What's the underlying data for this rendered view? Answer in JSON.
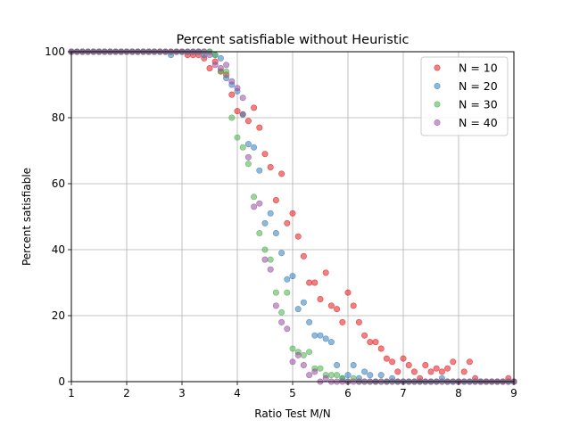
{
  "chart_data": {
    "type": "scatter",
    "title": "Percent satisfiable without Heuristic",
    "xlabel": "Ratio Test M/N",
    "ylabel": "Percent satisfiable",
    "xlim": [
      1,
      9
    ],
    "ylim": [
      0,
      100
    ],
    "xticks": [
      "1",
      "2",
      "3",
      "4",
      "5",
      "6",
      "7",
      "8",
      "9"
    ],
    "yticks": [
      "0",
      "20",
      "40",
      "60",
      "80",
      "100"
    ],
    "grid": true,
    "legend_position": "top-right",
    "series": [
      {
        "name": "N = 10",
        "color": "#e41a1c",
        "x": [
          1.0,
          1.1,
          1.2,
          1.3,
          1.4,
          1.5,
          1.6,
          1.7,
          1.8,
          1.9,
          2.0,
          2.1,
          2.2,
          2.3,
          2.4,
          2.5,
          2.6,
          2.7,
          2.8,
          2.9,
          3.0,
          3.1,
          3.2,
          3.3,
          3.4,
          3.5,
          3.6,
          3.7,
          3.8,
          3.9,
          4.0,
          4.1,
          4.2,
          4.3,
          4.4,
          4.5,
          4.6,
          4.7,
          4.8,
          4.9,
          5.0,
          5.1,
          5.2,
          5.3,
          5.4,
          5.5,
          5.6,
          5.7,
          5.8,
          5.9,
          6.0,
          6.1,
          6.2,
          6.3,
          6.4,
          6.5,
          6.6,
          6.7,
          6.8,
          6.9,
          7.0,
          7.1,
          7.2,
          7.3,
          7.4,
          7.5,
          7.6,
          7.7,
          7.8,
          7.9,
          8.0,
          8.1,
          8.2,
          8.3,
          8.4,
          8.5,
          8.6,
          8.7,
          8.8,
          8.9,
          9.0
        ],
        "y": [
          100,
          100,
          100,
          100,
          100,
          100,
          100,
          100,
          100,
          100,
          100,
          100,
          100,
          100,
          100,
          100,
          100,
          100,
          100,
          100,
          100,
          99,
          99,
          99,
          98,
          95,
          97,
          94,
          93,
          87,
          82,
          81,
          79,
          83,
          77,
          69,
          65,
          55,
          63,
          48,
          51,
          44,
          38,
          30,
          30,
          25,
          33,
          23,
          22,
          18,
          27,
          23,
          18,
          14,
          12,
          12,
          10,
          7,
          6,
          3,
          7,
          5,
          3,
          1,
          5,
          3,
          4,
          3,
          4,
          6,
          0,
          3,
          6,
          1,
          0,
          0,
          0,
          0,
          0,
          1,
          0
        ]
      },
      {
        "name": "N = 20",
        "color": "#377eb8",
        "x": [
          1.0,
          1.1,
          1.2,
          1.3,
          1.4,
          1.5,
          1.6,
          1.7,
          1.8,
          1.9,
          2.0,
          2.1,
          2.2,
          2.3,
          2.4,
          2.5,
          2.6,
          2.7,
          2.8,
          2.9,
          3.0,
          3.1,
          3.2,
          3.3,
          3.4,
          3.5,
          3.6,
          3.7,
          3.8,
          3.9,
          4.0,
          4.1,
          4.2,
          4.3,
          4.4,
          4.5,
          4.6,
          4.7,
          4.8,
          4.9,
          5.0,
          5.1,
          5.2,
          5.3,
          5.4,
          5.5,
          5.6,
          5.7,
          5.8,
          5.9,
          6.0,
          6.1,
          6.2,
          6.3,
          6.4,
          6.5,
          6.6,
          6.7,
          6.8,
          6.9,
          7.0,
          7.1,
          7.2,
          7.3,
          7.4,
          7.5,
          7.6,
          7.7,
          7.8,
          7.9,
          8.0,
          8.1,
          8.2,
          8.3,
          8.4,
          8.5,
          8.6,
          8.7,
          8.8,
          8.9,
          9.0
        ],
        "y": [
          100,
          100,
          100,
          100,
          100,
          100,
          100,
          100,
          100,
          100,
          100,
          100,
          100,
          100,
          100,
          100,
          100,
          100,
          99,
          100,
          100,
          100,
          100,
          100,
          99,
          100,
          99,
          98,
          92,
          90,
          88,
          81,
          72,
          71,
          64,
          48,
          51,
          45,
          39,
          31,
          32,
          22,
          24,
          18,
          14,
          14,
          13,
          12,
          5,
          1,
          2,
          5,
          1,
          3,
          2,
          0,
          2,
          0,
          1,
          0,
          0,
          0,
          0,
          0,
          0,
          0,
          0,
          1,
          0,
          0,
          0,
          0,
          0,
          0,
          0,
          0,
          0,
          0,
          0,
          0,
          0
        ]
      },
      {
        "name": "N = 30",
        "color": "#4daf4a",
        "x": [
          1.0,
          1.1,
          1.2,
          1.3,
          1.4,
          1.5,
          1.6,
          1.7,
          1.8,
          1.9,
          2.0,
          2.1,
          2.2,
          2.3,
          2.4,
          2.5,
          2.6,
          2.7,
          2.8,
          2.9,
          3.0,
          3.1,
          3.2,
          3.3,
          3.4,
          3.5,
          3.6,
          3.7,
          3.8,
          3.9,
          4.0,
          4.1,
          4.2,
          4.3,
          4.4,
          4.5,
          4.6,
          4.7,
          4.8,
          4.9,
          5.0,
          5.1,
          5.2,
          5.3,
          5.4,
          5.5,
          5.6,
          5.7,
          5.8,
          5.9,
          6.0,
          6.1,
          6.2,
          6.3,
          6.4,
          6.5,
          6.6,
          6.7,
          6.8,
          6.9,
          7.0,
          7.1,
          7.2,
          7.3,
          7.4,
          7.5,
          7.6,
          7.7,
          7.8,
          7.9,
          8.0,
          8.1,
          8.2,
          8.3,
          8.4,
          8.5,
          8.6,
          8.7,
          8.8,
          8.9,
          9.0
        ],
        "y": [
          100,
          100,
          100,
          100,
          100,
          100,
          100,
          100,
          100,
          100,
          100,
          100,
          100,
          100,
          100,
          100,
          100,
          100,
          100,
          100,
          100,
          100,
          100,
          100,
          100,
          100,
          99,
          94,
          94,
          80,
          74,
          71,
          66,
          56,
          45,
          40,
          37,
          27,
          21,
          27,
          10,
          9,
          8,
          9,
          4,
          4,
          2,
          2,
          2,
          1,
          0,
          1,
          0,
          0,
          0,
          0,
          0,
          0,
          0,
          0,
          0,
          0,
          0,
          0,
          0,
          0,
          0,
          0,
          0,
          0,
          0,
          0,
          0,
          0,
          0,
          0,
          0,
          0,
          0,
          0,
          0
        ]
      },
      {
        "name": "N = 40",
        "color": "#984ea3",
        "x": [
          1.0,
          1.1,
          1.2,
          1.3,
          1.4,
          1.5,
          1.6,
          1.7,
          1.8,
          1.9,
          2.0,
          2.1,
          2.2,
          2.3,
          2.4,
          2.5,
          2.6,
          2.7,
          2.8,
          2.9,
          3.0,
          3.1,
          3.2,
          3.3,
          3.4,
          3.5,
          3.6,
          3.7,
          3.8,
          3.9,
          4.0,
          4.1,
          4.2,
          4.3,
          4.4,
          4.5,
          4.6,
          4.7,
          4.8,
          4.9,
          5.0,
          5.1,
          5.2,
          5.3,
          5.4,
          5.5,
          5.6,
          5.7,
          5.8,
          5.9,
          6.0,
          6.1,
          6.2,
          6.3,
          6.4,
          6.5,
          6.6,
          6.7,
          6.8,
          6.9,
          7.0,
          7.1,
          7.2,
          7.3,
          7.4,
          7.5,
          7.6,
          7.7,
          7.8,
          7.9,
          8.0,
          8.1,
          8.2,
          8.3,
          8.4,
          8.5,
          8.6,
          8.7,
          8.8,
          8.9,
          9.0
        ],
        "y": [
          100,
          100,
          100,
          100,
          100,
          100,
          100,
          100,
          100,
          100,
          100,
          100,
          100,
          100,
          100,
          100,
          100,
          100,
          100,
          100,
          100,
          100,
          100,
          100,
          100,
          99,
          96,
          95,
          96,
          91,
          89,
          86,
          68,
          53,
          54,
          37,
          34,
          23,
          18,
          16,
          6,
          8,
          5,
          2,
          3,
          0,
          1,
          0,
          0,
          0,
          0,
          0,
          0,
          0,
          0,
          0,
          0,
          0,
          0,
          0,
          0,
          0,
          0,
          0,
          0,
          0,
          0,
          0,
          0,
          0,
          0,
          0,
          0,
          0,
          0,
          0,
          0,
          0,
          0,
          0,
          0
        ]
      }
    ]
  }
}
